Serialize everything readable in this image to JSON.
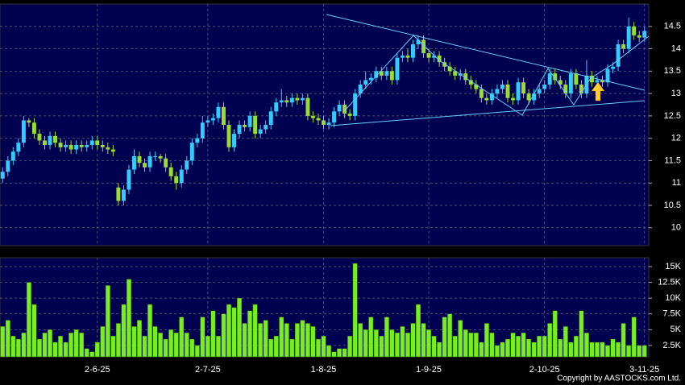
{
  "chart_data": [
    {
      "type": "candlestick",
      "up_color": "#33ccff",
      "down_color": "#99dd33",
      "ylim": [
        9.6,
        15.0
      ],
      "yticks": [
        10,
        10.5,
        11,
        11.5,
        12,
        12.5,
        13,
        13.5,
        14,
        14.5
      ],
      "grid": true,
      "open": [
        11.1,
        11.25,
        11.5,
        11.7,
        11.9,
        12.4,
        12.35,
        12.1,
        11.95,
        11.85,
        12.05,
        11.9,
        11.8,
        11.85,
        11.75,
        11.85,
        11.8,
        11.85,
        11.95,
        11.85,
        11.8,
        11.75,
        10.9,
        10.6,
        10.85,
        11.3,
        11.6,
        11.45,
        11.35,
        11.6,
        11.6,
        11.55,
        11.35,
        11.15,
        11.0,
        11.3,
        11.5,
        11.9,
        12.0,
        12.35,
        12.4,
        12.45,
        12.7,
        12.3,
        11.8,
        12.1,
        12.3,
        12.25,
        12.5,
        12.1,
        12.2,
        12.3,
        12.6,
        12.8,
        12.85,
        12.8,
        12.9,
        12.85,
        12.9,
        12.5,
        12.45,
        12.4,
        12.3,
        12.35,
        12.6,
        12.75,
        12.55,
        12.5,
        13.0,
        13.2,
        13.3,
        13.35,
        13.5,
        13.4,
        13.5,
        13.3,
        13.8,
        13.85,
        13.8,
        14.1,
        14.2,
        13.9,
        13.8,
        13.85,
        13.7,
        13.6,
        13.5,
        13.4,
        13.45,
        13.3,
        13.2,
        13.1,
        12.9,
        12.85,
        13.0,
        13.1,
        13.2,
        12.9,
        12.85,
        13.25,
        13.0,
        12.85,
        13.0,
        13.1,
        13.2,
        13.45,
        13.3,
        13.2,
        13.0,
        13.45,
        13.2,
        13.0,
        13.4,
        13.25,
        13.3,
        13.25,
        13.55,
        13.6,
        14.1,
        14.0,
        14.5,
        14.3,
        14.25
      ],
      "high": [
        11.35,
        11.6,
        11.8,
        12.0,
        12.5,
        12.45,
        12.45,
        12.2,
        12.05,
        12.15,
        12.15,
        12.0,
        11.95,
        11.95,
        11.95,
        11.95,
        11.95,
        12.05,
        12.05,
        11.95,
        11.9,
        11.85,
        11.0,
        10.95,
        11.4,
        11.75,
        11.7,
        11.55,
        11.7,
        11.7,
        11.65,
        11.65,
        11.45,
        11.25,
        11.4,
        11.6,
        12.0,
        12.1,
        12.5,
        12.5,
        12.55,
        12.8,
        12.8,
        12.4,
        12.2,
        12.4,
        12.4,
        12.6,
        12.6,
        12.3,
        12.4,
        12.7,
        12.9,
        13.1,
        12.95,
        13.0,
        13.0,
        13.0,
        13.0,
        12.6,
        12.55,
        12.5,
        12.45,
        12.7,
        12.85,
        12.85,
        12.65,
        13.1,
        13.3,
        13.5,
        13.45,
        13.6,
        13.6,
        13.6,
        13.6,
        13.9,
        13.95,
        14.0,
        14.2,
        14.3,
        14.3,
        14.0,
        13.95,
        13.95,
        13.8,
        13.7,
        13.6,
        13.55,
        13.55,
        13.4,
        13.3,
        13.2,
        13.0,
        13.1,
        13.2,
        13.3,
        13.3,
        13.0,
        13.35,
        13.35,
        13.1,
        13.1,
        13.2,
        13.3,
        13.55,
        13.55,
        13.4,
        13.3,
        13.55,
        13.55,
        13.3,
        13.75,
        13.5,
        13.4,
        13.4,
        13.65,
        13.7,
        14.2,
        14.2,
        14.7,
        14.6,
        14.4,
        14.5
      ],
      "low": [
        11.0,
        11.15,
        11.4,
        11.6,
        11.8,
        12.25,
        12.0,
        11.85,
        11.75,
        11.75,
        11.8,
        11.7,
        11.7,
        11.65,
        11.65,
        11.7,
        11.7,
        11.75,
        11.75,
        11.7,
        11.65,
        11.6,
        10.5,
        10.5,
        10.75,
        11.2,
        11.35,
        11.25,
        11.25,
        11.5,
        11.45,
        11.25,
        11.05,
        10.85,
        10.9,
        11.2,
        11.4,
        11.8,
        11.9,
        12.25,
        12.3,
        12.35,
        12.2,
        11.7,
        11.7,
        12.0,
        12.15,
        12.15,
        12.0,
        12.0,
        12.1,
        12.2,
        12.5,
        12.7,
        12.7,
        12.7,
        12.75,
        12.75,
        12.4,
        12.35,
        12.3,
        12.2,
        12.2,
        12.25,
        12.5,
        12.45,
        12.4,
        12.4,
        12.9,
        13.1,
        13.2,
        13.25,
        13.3,
        13.3,
        13.2,
        13.2,
        13.7,
        13.7,
        13.7,
        14.0,
        13.8,
        13.7,
        13.7,
        13.6,
        13.5,
        13.4,
        13.3,
        13.3,
        13.2,
        13.1,
        13.0,
        12.8,
        12.75,
        12.75,
        12.9,
        13.0,
        12.8,
        12.75,
        12.75,
        12.9,
        12.75,
        12.75,
        12.9,
        13.0,
        13.1,
        13.2,
        13.1,
        12.9,
        12.9,
        13.1,
        12.9,
        12.9,
        13.15,
        13.15,
        13.15,
        13.15,
        13.45,
        13.5,
        13.9,
        13.9,
        14.2,
        14.15,
        14.15
      ],
      "close": [
        11.25,
        11.5,
        11.7,
        11.9,
        12.4,
        12.35,
        12.1,
        11.95,
        11.85,
        12.05,
        11.9,
        11.8,
        11.85,
        11.75,
        11.85,
        11.8,
        11.85,
        11.95,
        11.85,
        11.8,
        11.75,
        11.7,
        10.6,
        10.85,
        11.3,
        11.6,
        11.45,
        11.35,
        11.6,
        11.6,
        11.55,
        11.35,
        11.15,
        11.0,
        11.3,
        11.5,
        11.9,
        12.0,
        12.35,
        12.4,
        12.45,
        12.7,
        12.3,
        11.8,
        12.1,
        12.3,
        12.25,
        12.5,
        12.1,
        12.2,
        12.3,
        12.6,
        12.8,
        12.85,
        12.8,
        12.9,
        12.85,
        12.9,
        12.5,
        12.45,
        12.4,
        12.3,
        12.35,
        12.6,
        12.75,
        12.55,
        12.5,
        13.0,
        13.2,
        13.3,
        13.35,
        13.5,
        13.4,
        13.5,
        13.3,
        13.8,
        13.85,
        13.8,
        14.1,
        14.2,
        13.9,
        13.8,
        13.85,
        13.7,
        13.6,
        13.5,
        13.4,
        13.45,
        13.3,
        13.2,
        13.1,
        12.9,
        12.85,
        13.0,
        13.1,
        13.2,
        12.9,
        12.85,
        13.25,
        13.0,
        12.85,
        13.0,
        13.1,
        13.2,
        13.45,
        13.3,
        13.2,
        13.0,
        13.45,
        13.2,
        13.0,
        13.4,
        13.25,
        13.3,
        13.25,
        13.55,
        13.6,
        14.1,
        14.0,
        14.5,
        14.3,
        14.25,
        14.4
      ]
    },
    {
      "type": "bar",
      "color": "#77ee22",
      "ylim": [
        700,
        16400
      ],
      "yticks": [
        {
          "value": 2500,
          "label": "2.5K"
        },
        {
          "value": 5000,
          "label": "5K"
        },
        {
          "value": 7500,
          "label": "7.5K"
        },
        {
          "value": 10000,
          "label": "10K"
        },
        {
          "value": 12500,
          "label": "12.5K"
        },
        {
          "value": 15000,
          "label": "15K"
        }
      ],
      "grid": true,
      "categories": [
        null,
        null,
        null,
        null,
        null,
        null,
        null,
        null,
        null,
        null,
        null,
        null,
        null,
        null,
        null,
        null,
        null,
        null,
        "2-6-25",
        null,
        null,
        null,
        null,
        null,
        null,
        null,
        null,
        null,
        null,
        null,
        null,
        null,
        null,
        null,
        null,
        null,
        null,
        null,
        null,
        "2-7-25",
        null,
        null,
        null,
        null,
        null,
        null,
        null,
        null,
        null,
        null,
        null,
        null,
        null,
        null,
        null,
        null,
        null,
        null,
        null,
        null,
        null,
        "1-8-25",
        null,
        null,
        null,
        null,
        null,
        null,
        null,
        null,
        null,
        null,
        null,
        null,
        null,
        null,
        null,
        null,
        null,
        null,
        null,
        "1-9-25",
        null,
        null,
        null,
        null,
        null,
        null,
        null,
        null,
        null,
        null,
        null,
        null,
        null,
        null,
        null,
        null,
        null,
        null,
        null,
        null,
        null,
        "2-10-25",
        null,
        null,
        null,
        null,
        null,
        null,
        null,
        null,
        null,
        null,
        null,
        null,
        null,
        null,
        null,
        null,
        null,
        null,
        "3-11-25"
      ],
      "values": [
        5500,
        6500,
        4000,
        3500,
        4500,
        12500,
        9000,
        3500,
        4500,
        5000,
        3000,
        4000,
        3000,
        4500,
        5000,
        4500,
        2000,
        1500,
        3000,
        5500,
        12000,
        4000,
        6000,
        9000,
        13000,
        5500,
        6500,
        4000,
        9000,
        5500,
        4500,
        3500,
        5000,
        4500,
        7000,
        4500,
        3500,
        2500,
        7000,
        4000,
        8000,
        4000,
        7500,
        9000,
        8500,
        10000,
        6000,
        8000,
        9000,
        6000,
        6500,
        3500,
        4000,
        7000,
        6000,
        3500,
        6000,
        6500,
        6000,
        5500,
        3500,
        4000,
        2500,
        1500,
        2000,
        2000,
        4000,
        15500,
        6000,
        5000,
        7000,
        5000,
        4000,
        7000,
        5000,
        4500,
        5500,
        4500,
        6000,
        9000,
        6000,
        5000,
        4000,
        3000,
        7000,
        7500,
        4000,
        6500,
        5000,
        4500,
        4500,
        3000,
        6000,
        4500,
        2500,
        3000,
        3500,
        4500,
        4000,
        4500,
        3500,
        3000,
        4000,
        4000,
        6000,
        8000,
        3500,
        5500,
        3000,
        4000,
        8000,
        4500,
        3000,
        3000,
        3000,
        2500,
        3500,
        3000,
        6000,
        2500,
        7000,
        2500,
        2500
      ]
    }
  ],
  "copyright": "Copyright by AASTOCKS.com Ltd."
}
